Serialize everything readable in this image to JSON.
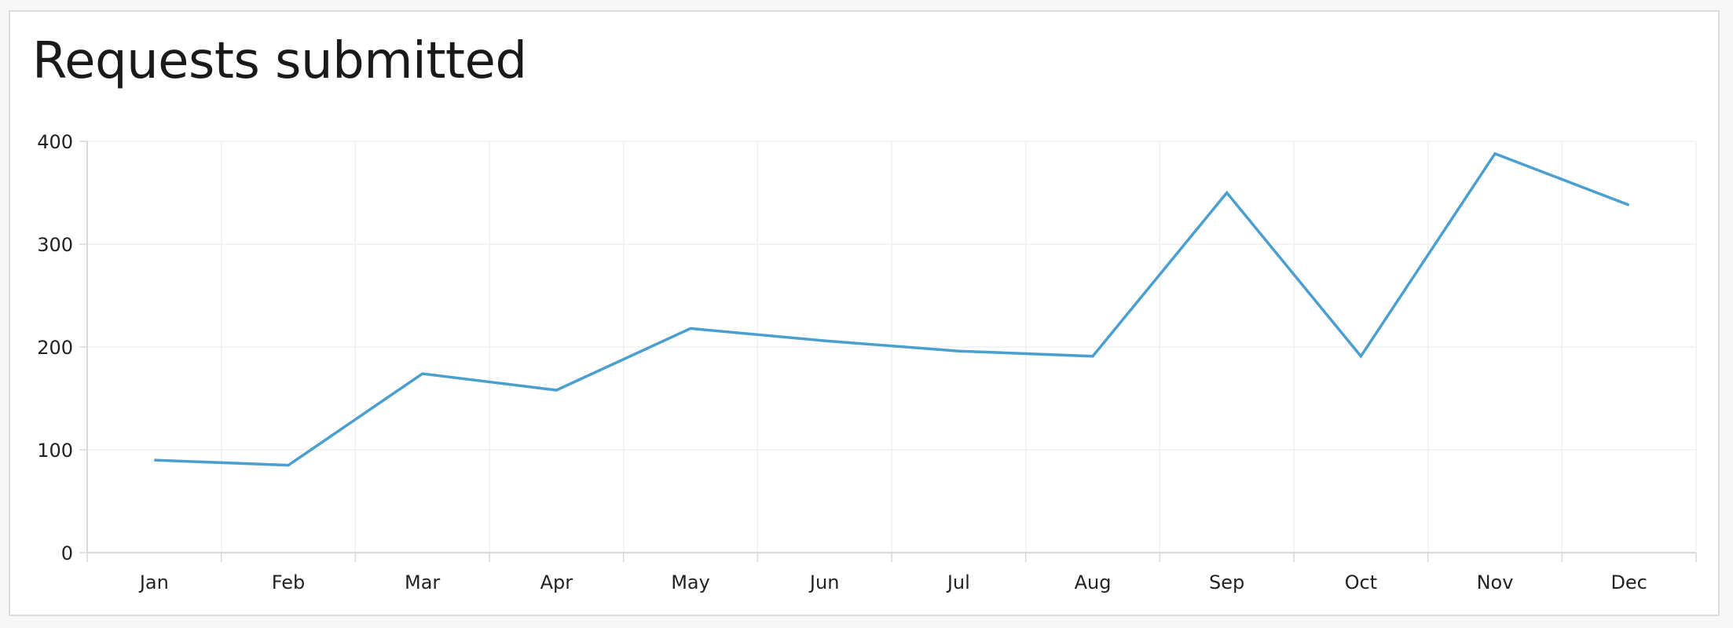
{
  "chart_data": {
    "type": "line",
    "title": "Requests submitted",
    "xlabel": "",
    "ylabel": "",
    "categories": [
      "Jan",
      "Feb",
      "Mar",
      "Apr",
      "May",
      "Jun",
      "Jul",
      "Aug",
      "Sep",
      "Oct",
      "Nov",
      "Dec"
    ],
    "series": [
      {
        "values": [
          90,
          85,
          174,
          158,
          218,
          206,
          196,
          191,
          350,
          191,
          388,
          338
        ]
      }
    ],
    "ylim": [
      0,
      400
    ],
    "yticks": [
      0,
      100,
      200,
      300,
      400
    ],
    "grid": true,
    "legend": "none",
    "colors": {
      "line": "#4a9fce",
      "grid": "#f0f0f0",
      "axis": "#d9d9d9"
    }
  }
}
